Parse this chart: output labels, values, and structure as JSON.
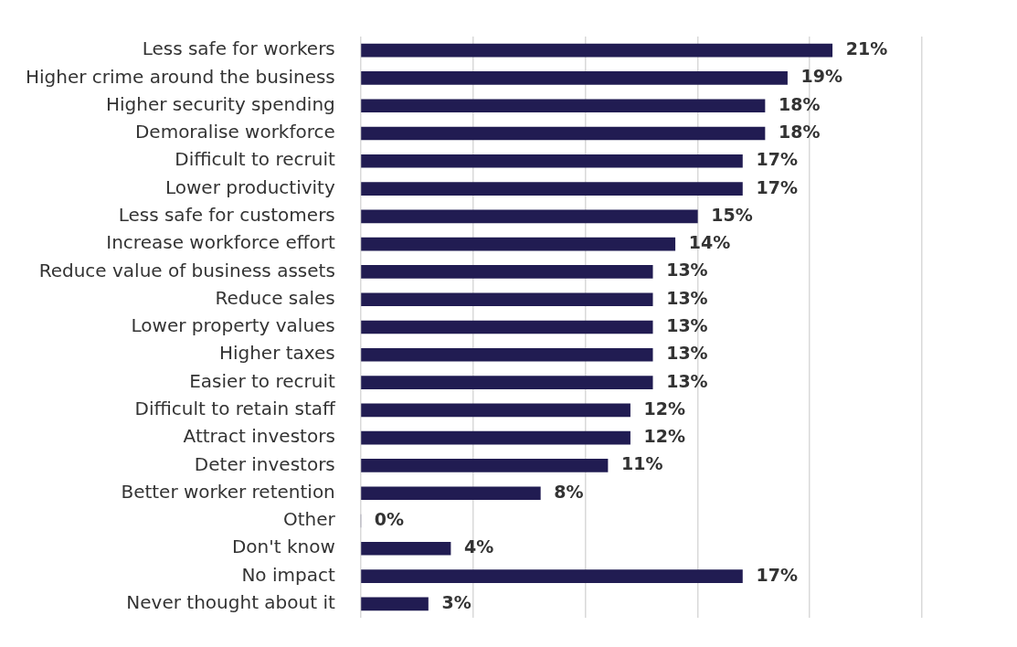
{
  "chart_data": {
    "type": "bar",
    "orientation": "horizontal",
    "categories": [
      "Less safe for workers",
      "Higher crime around the business",
      "Higher security spending",
      "Demoralise workforce",
      "Difficult to recruit",
      "Lower productivity",
      "Less safe for customers",
      "Increase workforce effort",
      "Reduce value of business assets",
      "Reduce sales",
      "Lower property values",
      "Higher taxes",
      "Easier to recruit",
      "Difficult to retain staff",
      "Attract investors",
      "Deter investors",
      "Better worker retention",
      "Other",
      "Don't know",
      "No impact",
      "Never thought about it"
    ],
    "values": [
      21,
      19,
      18,
      18,
      17,
      17,
      15,
      14,
      13,
      13,
      13,
      13,
      13,
      12,
      12,
      11,
      8,
      0,
      4,
      17,
      3
    ],
    "value_labels": [
      "21%",
      "19%",
      "18%",
      "18%",
      "17%",
      "17%",
      "15%",
      "14%",
      "13%",
      "13%",
      "13%",
      "13%",
      "13%",
      "12%",
      "12%",
      "11%",
      "8%",
      "0%",
      "4%",
      "17%",
      "3%"
    ],
    "color": "#211c52",
    "xlim": [
      0,
      25
    ],
    "xticks": [
      {
        "value": 0,
        "label": null
      },
      {
        "value": 5,
        "label": null
      },
      {
        "value": 10,
        "label": null
      },
      {
        "value": 15,
        "label": null
      },
      {
        "value": 20,
        "label": null
      },
      {
        "value": 25,
        "label": null
      }
    ],
    "grid": "x",
    "tick_labels": "y"
  }
}
